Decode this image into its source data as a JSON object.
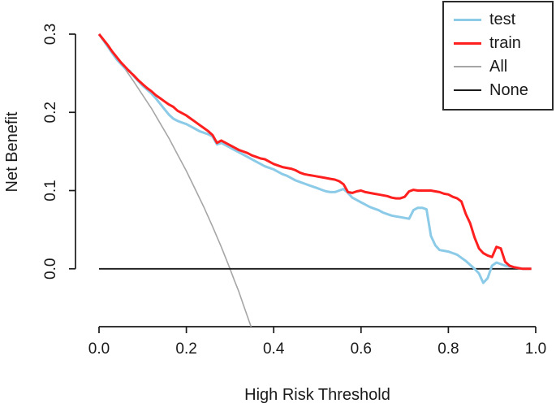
{
  "chart_data": {
    "type": "line",
    "title": "",
    "xlabel": "High Risk Threshold",
    "ylabel": "Net Benefit",
    "xlim": [
      0.0,
      1.0
    ],
    "ylim": [
      -0.074,
      0.3
    ],
    "x_ticks": [
      0.0,
      0.2,
      0.4,
      0.6,
      0.8,
      1.0
    ],
    "y_ticks": [
      0.0,
      0.1,
      0.2,
      0.3
    ],
    "grid": false,
    "legend_position": "top-right",
    "axis_color": "#1a1a1a",
    "draw_order": [
      "All",
      "None",
      "test",
      "train"
    ],
    "series": [
      {
        "name": "test",
        "color": "#8ccbe8",
        "width": 3,
        "points": [
          [
            0.0,
            0.3
          ],
          [
            0.01,
            0.292
          ],
          [
            0.02,
            0.284
          ],
          [
            0.03,
            0.276
          ],
          [
            0.04,
            0.268
          ],
          [
            0.05,
            0.262
          ],
          [
            0.06,
            0.256
          ],
          [
            0.07,
            0.253
          ],
          [
            0.08,
            0.246
          ],
          [
            0.09,
            0.24
          ],
          [
            0.1,
            0.234
          ],
          [
            0.11,
            0.229
          ],
          [
            0.12,
            0.224
          ],
          [
            0.13,
            0.218
          ],
          [
            0.14,
            0.211
          ],
          [
            0.15,
            0.204
          ],
          [
            0.16,
            0.197
          ],
          [
            0.17,
            0.192
          ],
          [
            0.18,
            0.189
          ],
          [
            0.19,
            0.187
          ],
          [
            0.2,
            0.185
          ],
          [
            0.21,
            0.182
          ],
          [
            0.22,
            0.179
          ],
          [
            0.23,
            0.176
          ],
          [
            0.24,
            0.174
          ],
          [
            0.25,
            0.172
          ],
          [
            0.26,
            0.169
          ],
          [
            0.27,
            0.159
          ],
          [
            0.28,
            0.161
          ],
          [
            0.29,
            0.158
          ],
          [
            0.3,
            0.155
          ],
          [
            0.31,
            0.152
          ],
          [
            0.32,
            0.149
          ],
          [
            0.33,
            0.146
          ],
          [
            0.34,
            0.143
          ],
          [
            0.35,
            0.14
          ],
          [
            0.36,
            0.137
          ],
          [
            0.37,
            0.134
          ],
          [
            0.38,
            0.131
          ],
          [
            0.39,
            0.129
          ],
          [
            0.4,
            0.127
          ],
          [
            0.41,
            0.124
          ],
          [
            0.42,
            0.121
          ],
          [
            0.43,
            0.119
          ],
          [
            0.44,
            0.116
          ],
          [
            0.45,
            0.113
          ],
          [
            0.46,
            0.111
          ],
          [
            0.47,
            0.109
          ],
          [
            0.48,
            0.107
          ],
          [
            0.49,
            0.105
          ],
          [
            0.5,
            0.103
          ],
          [
            0.51,
            0.101
          ],
          [
            0.52,
            0.099
          ],
          [
            0.53,
            0.098
          ],
          [
            0.54,
            0.098
          ],
          [
            0.55,
            0.1
          ],
          [
            0.56,
            0.102
          ],
          [
            0.57,
            0.097
          ],
          [
            0.58,
            0.091
          ],
          [
            0.59,
            0.088
          ],
          [
            0.6,
            0.085
          ],
          [
            0.61,
            0.082
          ],
          [
            0.62,
            0.079
          ],
          [
            0.63,
            0.077
          ],
          [
            0.64,
            0.075
          ],
          [
            0.65,
            0.072
          ],
          [
            0.66,
            0.07
          ],
          [
            0.67,
            0.068
          ],
          [
            0.68,
            0.067
          ],
          [
            0.69,
            0.066
          ],
          [
            0.7,
            0.065
          ],
          [
            0.71,
            0.064
          ],
          [
            0.72,
            0.075
          ],
          [
            0.73,
            0.078
          ],
          [
            0.74,
            0.078
          ],
          [
            0.75,
            0.076
          ],
          [
            0.76,
            0.042
          ],
          [
            0.77,
            0.03
          ],
          [
            0.78,
            0.024
          ],
          [
            0.79,
            0.023
          ],
          [
            0.8,
            0.022
          ],
          [
            0.81,
            0.02
          ],
          [
            0.82,
            0.018
          ],
          [
            0.83,
            0.014
          ],
          [
            0.84,
            0.01
          ],
          [
            0.85,
            0.005
          ],
          [
            0.86,
            0.0
          ],
          [
            0.87,
            -0.006
          ],
          [
            0.88,
            -0.018
          ],
          [
            0.89,
            -0.012
          ],
          [
            0.9,
            0.004
          ],
          [
            0.91,
            0.008
          ],
          [
            0.92,
            0.006
          ],
          [
            0.93,
            0.004
          ],
          [
            0.94,
            0.003
          ],
          [
            0.95,
            0.002
          ],
          [
            0.96,
            0.001
          ],
          [
            0.97,
            0.0
          ],
          [
            0.98,
            0.0
          ],
          [
            0.99,
            0.0
          ]
        ]
      },
      {
        "name": "train",
        "color": "#ff1f1f",
        "width": 3,
        "points": [
          [
            0.0,
            0.3
          ],
          [
            0.01,
            0.293
          ],
          [
            0.02,
            0.286
          ],
          [
            0.03,
            0.278
          ],
          [
            0.04,
            0.271
          ],
          [
            0.05,
            0.264
          ],
          [
            0.06,
            0.258
          ],
          [
            0.07,
            0.252
          ],
          [
            0.08,
            0.247
          ],
          [
            0.09,
            0.241
          ],
          [
            0.1,
            0.236
          ],
          [
            0.11,
            0.231
          ],
          [
            0.12,
            0.227
          ],
          [
            0.13,
            0.222
          ],
          [
            0.14,
            0.218
          ],
          [
            0.15,
            0.214
          ],
          [
            0.16,
            0.21
          ],
          [
            0.17,
            0.207
          ],
          [
            0.18,
            0.202
          ],
          [
            0.19,
            0.199
          ],
          [
            0.2,
            0.196
          ],
          [
            0.21,
            0.192
          ],
          [
            0.22,
            0.188
          ],
          [
            0.23,
            0.184
          ],
          [
            0.24,
            0.18
          ],
          [
            0.25,
            0.176
          ],
          [
            0.26,
            0.171
          ],
          [
            0.27,
            0.161
          ],
          [
            0.28,
            0.164
          ],
          [
            0.29,
            0.161
          ],
          [
            0.3,
            0.158
          ],
          [
            0.31,
            0.155
          ],
          [
            0.32,
            0.152
          ],
          [
            0.33,
            0.15
          ],
          [
            0.34,
            0.148
          ],
          [
            0.35,
            0.145
          ],
          [
            0.36,
            0.143
          ],
          [
            0.37,
            0.141
          ],
          [
            0.38,
            0.14
          ],
          [
            0.39,
            0.137
          ],
          [
            0.4,
            0.134
          ],
          [
            0.41,
            0.132
          ],
          [
            0.42,
            0.13
          ],
          [
            0.43,
            0.129
          ],
          [
            0.44,
            0.128
          ],
          [
            0.45,
            0.126
          ],
          [
            0.46,
            0.123
          ],
          [
            0.47,
            0.121
          ],
          [
            0.48,
            0.12
          ],
          [
            0.49,
            0.119
          ],
          [
            0.5,
            0.118
          ],
          [
            0.51,
            0.117
          ],
          [
            0.52,
            0.116
          ],
          [
            0.53,
            0.115
          ],
          [
            0.54,
            0.114
          ],
          [
            0.55,
            0.112
          ],
          [
            0.56,
            0.108
          ],
          [
            0.57,
            0.098
          ],
          [
            0.58,
            0.097
          ],
          [
            0.59,
            0.099
          ],
          [
            0.6,
            0.1
          ],
          [
            0.61,
            0.098
          ],
          [
            0.62,
            0.097
          ],
          [
            0.63,
            0.096
          ],
          [
            0.64,
            0.095
          ],
          [
            0.65,
            0.094
          ],
          [
            0.66,
            0.093
          ],
          [
            0.67,
            0.091
          ],
          [
            0.68,
            0.09
          ],
          [
            0.69,
            0.09
          ],
          [
            0.7,
            0.092
          ],
          [
            0.71,
            0.099
          ],
          [
            0.72,
            0.101
          ],
          [
            0.73,
            0.1
          ],
          [
            0.74,
            0.1
          ],
          [
            0.75,
            0.1
          ],
          [
            0.76,
            0.1
          ],
          [
            0.77,
            0.099
          ],
          [
            0.78,
            0.098
          ],
          [
            0.79,
            0.096
          ],
          [
            0.8,
            0.095
          ],
          [
            0.81,
            0.092
          ],
          [
            0.82,
            0.09
          ],
          [
            0.83,
            0.086
          ],
          [
            0.84,
            0.07
          ],
          [
            0.85,
            0.058
          ],
          [
            0.86,
            0.04
          ],
          [
            0.87,
            0.026
          ],
          [
            0.88,
            0.02
          ],
          [
            0.89,
            0.017
          ],
          [
            0.9,
            0.015
          ],
          [
            0.91,
            0.028
          ],
          [
            0.92,
            0.026
          ],
          [
            0.93,
            0.009
          ],
          [
            0.94,
            0.004
          ],
          [
            0.95,
            0.002
          ],
          [
            0.96,
            0.001
          ],
          [
            0.97,
            0.0
          ],
          [
            0.98,
            0.0
          ],
          [
            0.99,
            0.0
          ]
        ]
      },
      {
        "name": "All",
        "color": "#a6a6a6",
        "width": 1.6,
        "points": [
          [
            0.0,
            0.3
          ],
          [
            0.02,
            0.286
          ],
          [
            0.04,
            0.271
          ],
          [
            0.06,
            0.255
          ],
          [
            0.08,
            0.239
          ],
          [
            0.1,
            0.222
          ],
          [
            0.12,
            0.205
          ],
          [
            0.14,
            0.186
          ],
          [
            0.16,
            0.167
          ],
          [
            0.18,
            0.146
          ],
          [
            0.2,
            0.125
          ],
          [
            0.22,
            0.102
          ],
          [
            0.24,
            0.079
          ],
          [
            0.26,
            0.054
          ],
          [
            0.28,
            0.028
          ],
          [
            0.3,
            0.0
          ],
          [
            0.31,
            -0.015
          ],
          [
            0.32,
            -0.029
          ],
          [
            0.33,
            -0.045
          ],
          [
            0.34,
            -0.061
          ],
          [
            0.35,
            -0.077
          ]
        ]
      },
      {
        "name": "None",
        "color": "#1a1a1a",
        "width": 1.8,
        "points": [
          [
            0.0,
            0.0
          ],
          [
            0.99,
            0.0
          ]
        ]
      }
    ]
  }
}
